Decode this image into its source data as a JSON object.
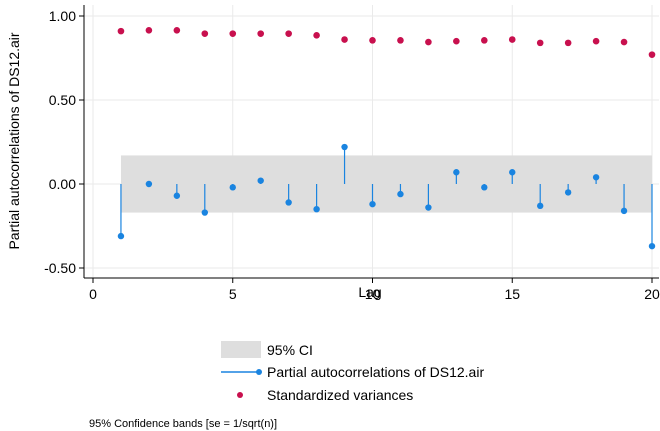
{
  "chart_data": {
    "type": "line",
    "xlabel": "Lag",
    "ylabel": "Partial autocorrelations of DS12.air",
    "xlim": [
      0,
      20
    ],
    "ylim": [
      -0.55,
      1.05
    ],
    "xticks": [
      0,
      5,
      10,
      15,
      20
    ],
    "xtick_labels": [
      "0",
      "5",
      "10",
      "15",
      "20"
    ],
    "yticks": [
      -0.5,
      0,
      0.5,
      1
    ],
    "ytick_labels": [
      "-0.50",
      "0.00",
      "0.50",
      "1.00"
    ],
    "grid": true,
    "legend_position": "bottom",
    "confidence_band": {
      "name": "95% CI",
      "lower": -0.17,
      "upper": 0.17,
      "x_range": [
        1,
        20
      ],
      "color": "#dedede"
    },
    "series": [
      {
        "name": "Partial autocorrelations of DS12.air",
        "style": "spike",
        "color": "#1a84e0",
        "x": [
          1,
          2,
          3,
          4,
          5,
          6,
          7,
          8,
          9,
          10,
          11,
          12,
          13,
          14,
          15,
          16,
          17,
          18,
          19,
          20
        ],
        "values": [
          -0.31,
          0.0,
          -0.07,
          -0.17,
          -0.02,
          0.02,
          -0.11,
          -0.15,
          0.22,
          -0.12,
          -0.06,
          -0.14,
          0.07,
          -0.02,
          0.07,
          -0.13,
          -0.05,
          0.04,
          -0.16,
          -0.37
        ]
      },
      {
        "name": "Standardized variances",
        "style": "scatter",
        "color": "#c8104e",
        "x": [
          1,
          2,
          3,
          4,
          5,
          6,
          7,
          8,
          9,
          10,
          11,
          12,
          13,
          14,
          15,
          16,
          17,
          18,
          19,
          20
        ],
        "values": [
          0.91,
          0.915,
          0.915,
          0.895,
          0.895,
          0.895,
          0.895,
          0.885,
          0.86,
          0.855,
          0.855,
          0.845,
          0.85,
          0.855,
          0.86,
          0.84,
          0.84,
          0.85,
          0.845,
          0.77
        ]
      }
    ],
    "note": "95% Confidence bands [se = 1/sqrt(n)]"
  }
}
